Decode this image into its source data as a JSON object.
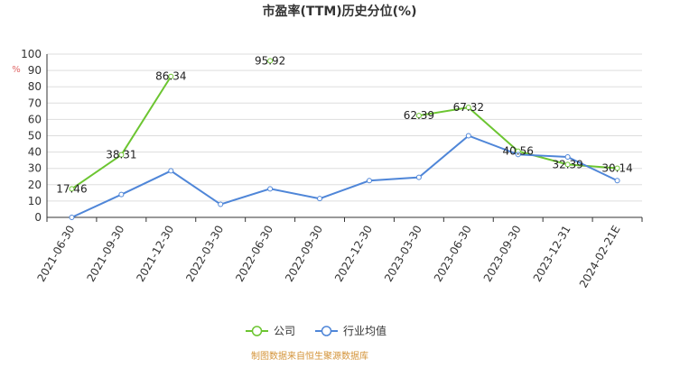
{
  "chart_data": {
    "type": "line",
    "title": "市盈率(TTM)历史分位(%)",
    "ylabel": "%",
    "ylim": [
      0,
      100
    ],
    "yticks": [
      0,
      10,
      20,
      30,
      40,
      50,
      60,
      70,
      80,
      90,
      100
    ],
    "categories": [
      "2021-06-30",
      "2021-09-30",
      "2021-12-30",
      "2022-03-30",
      "2022-06-30",
      "2022-09-30",
      "2022-12-30",
      "2023-03-30",
      "2023-06-30",
      "2023-09-30",
      "2023-12-31",
      "2024-02-21E"
    ],
    "series": [
      {
        "name": "公司",
        "color": "#6cc531",
        "values": [
          17.46,
          38.31,
          86.34,
          null,
          95.92,
          null,
          null,
          62.39,
          67.32,
          40.56,
          32.39,
          30.14
        ]
      },
      {
        "name": "行业均值",
        "color": "#4f86d8",
        "values": [
          0,
          14,
          28.5,
          8,
          17.5,
          11.5,
          22.5,
          24.5,
          50,
          38.5,
          37,
          22.5
        ]
      }
    ],
    "legend_position": "bottom",
    "grid": true
  },
  "footer": {
    "source": "制图数据来自恒生聚源数据库"
  }
}
